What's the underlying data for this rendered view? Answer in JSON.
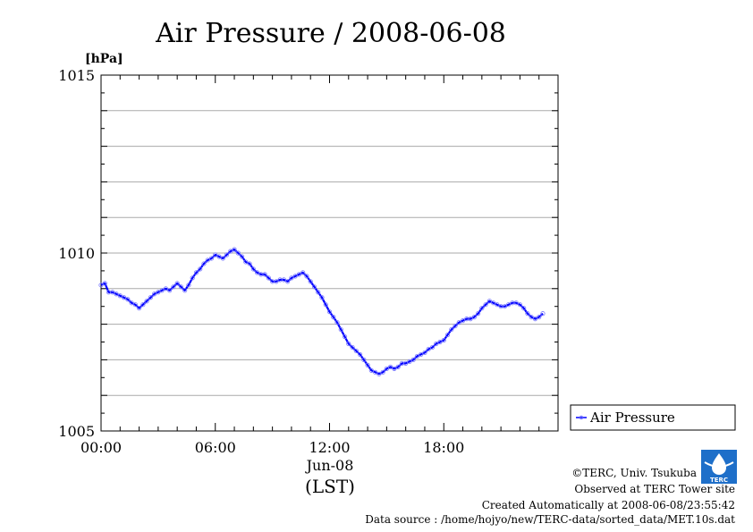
{
  "chart_data": {
    "type": "line",
    "title": "Air Pressure / 2008-06-08",
    "ylabel": "[hPa]",
    "xlabel_date": "Jun-08",
    "xlabel_unit": "(LST)",
    "xlim": [
      0,
      24
    ],
    "ylim": [
      1005,
      1015
    ],
    "x_ticks": [
      {
        "value": 0,
        "label": "00:00"
      },
      {
        "value": 6,
        "label": "06:00"
      },
      {
        "value": 12,
        "label": "12:00"
      },
      {
        "value": 18,
        "label": "18:00"
      }
    ],
    "y_ticks": [
      {
        "value": 1005,
        "label": "1005"
      },
      {
        "value": 1010,
        "label": "1010"
      },
      {
        "value": 1015,
        "label": "1015"
      }
    ],
    "grid": true,
    "legend_position": "right",
    "series": [
      {
        "name": "Air Pressure",
        "color": "#0000ff",
        "points": [
          [
            0.0,
            1009.1
          ],
          [
            0.2,
            1009.15
          ],
          [
            0.4,
            1008.9
          ],
          [
            0.6,
            1008.9
          ],
          [
            0.8,
            1008.85
          ],
          [
            1.0,
            1008.8
          ],
          [
            1.2,
            1008.75
          ],
          [
            1.4,
            1008.7
          ],
          [
            1.6,
            1008.6
          ],
          [
            1.8,
            1008.55
          ],
          [
            2.0,
            1008.45
          ],
          [
            2.2,
            1008.55
          ],
          [
            2.4,
            1008.65
          ],
          [
            2.6,
            1008.75
          ],
          [
            2.8,
            1008.85
          ],
          [
            3.0,
            1008.9
          ],
          [
            3.2,
            1008.95
          ],
          [
            3.4,
            1009.0
          ],
          [
            3.6,
            1008.95
          ],
          [
            3.8,
            1009.05
          ],
          [
            4.0,
            1009.15
          ],
          [
            4.2,
            1009.05
          ],
          [
            4.4,
            1008.95
          ],
          [
            4.6,
            1009.1
          ],
          [
            4.8,
            1009.3
          ],
          [
            5.0,
            1009.45
          ],
          [
            5.2,
            1009.55
          ],
          [
            5.4,
            1009.7
          ],
          [
            5.6,
            1009.8
          ],
          [
            5.8,
            1009.85
          ],
          [
            6.0,
            1009.95
          ],
          [
            6.2,
            1009.9
          ],
          [
            6.4,
            1009.85
          ],
          [
            6.6,
            1009.95
          ],
          [
            6.8,
            1010.05
          ],
          [
            7.0,
            1010.1
          ],
          [
            7.2,
            1010.0
          ],
          [
            7.4,
            1009.9
          ],
          [
            7.6,
            1009.75
          ],
          [
            7.8,
            1009.7
          ],
          [
            8.0,
            1009.55
          ],
          [
            8.2,
            1009.45
          ],
          [
            8.4,
            1009.4
          ],
          [
            8.6,
            1009.4
          ],
          [
            8.8,
            1009.3
          ],
          [
            9.0,
            1009.2
          ],
          [
            9.2,
            1009.2
          ],
          [
            9.4,
            1009.25
          ],
          [
            9.6,
            1009.25
          ],
          [
            9.8,
            1009.2
          ],
          [
            10.0,
            1009.3
          ],
          [
            10.2,
            1009.35
          ],
          [
            10.4,
            1009.4
          ],
          [
            10.6,
            1009.45
          ],
          [
            10.8,
            1009.35
          ],
          [
            11.0,
            1009.2
          ],
          [
            11.2,
            1009.05
          ],
          [
            11.4,
            1008.9
          ],
          [
            11.6,
            1008.75
          ],
          [
            11.8,
            1008.55
          ],
          [
            12.0,
            1008.35
          ],
          [
            12.2,
            1008.2
          ],
          [
            12.4,
            1008.05
          ],
          [
            12.6,
            1007.85
          ],
          [
            12.8,
            1007.65
          ],
          [
            13.0,
            1007.45
          ],
          [
            13.2,
            1007.35
          ],
          [
            13.4,
            1007.25
          ],
          [
            13.6,
            1007.15
          ],
          [
            13.8,
            1007.0
          ],
          [
            14.0,
            1006.85
          ],
          [
            14.2,
            1006.7
          ],
          [
            14.4,
            1006.65
          ],
          [
            14.6,
            1006.6
          ],
          [
            14.8,
            1006.65
          ],
          [
            15.0,
            1006.75
          ],
          [
            15.2,
            1006.8
          ],
          [
            15.4,
            1006.75
          ],
          [
            15.6,
            1006.8
          ],
          [
            15.8,
            1006.9
          ],
          [
            16.0,
            1006.9
          ],
          [
            16.2,
            1006.95
          ],
          [
            16.4,
            1007.0
          ],
          [
            16.6,
            1007.1
          ],
          [
            16.8,
            1007.15
          ],
          [
            17.0,
            1007.2
          ],
          [
            17.2,
            1007.3
          ],
          [
            17.4,
            1007.35
          ],
          [
            17.6,
            1007.45
          ],
          [
            17.8,
            1007.5
          ],
          [
            18.0,
            1007.55
          ],
          [
            18.2,
            1007.7
          ],
          [
            18.4,
            1007.85
          ],
          [
            18.6,
            1007.95
          ],
          [
            18.8,
            1008.05
          ],
          [
            19.0,
            1008.1
          ],
          [
            19.2,
            1008.15
          ],
          [
            19.4,
            1008.15
          ],
          [
            19.6,
            1008.2
          ],
          [
            19.8,
            1008.3
          ],
          [
            20.0,
            1008.45
          ],
          [
            20.2,
            1008.55
          ],
          [
            20.4,
            1008.65
          ],
          [
            20.6,
            1008.6
          ],
          [
            20.8,
            1008.55
          ],
          [
            21.0,
            1008.5
          ],
          [
            21.2,
            1008.5
          ],
          [
            21.4,
            1008.55
          ],
          [
            21.6,
            1008.6
          ],
          [
            21.8,
            1008.6
          ],
          [
            22.0,
            1008.55
          ],
          [
            22.2,
            1008.45
          ],
          [
            22.4,
            1008.3
          ],
          [
            22.6,
            1008.2
          ],
          [
            22.8,
            1008.15
          ],
          [
            23.0,
            1008.2
          ],
          [
            23.2,
            1008.3
          ]
        ]
      }
    ]
  },
  "footer": {
    "credit": "©TERC, Univ. Tsukuba",
    "observed": "Observed at TERC Tower site",
    "created": "Created Automatically at 2008-06-08/23:55:42",
    "source": "Data source : /home/hojyo/new/TERC-data/sorted_data/MET.10s.dat",
    "logo_text": "TERC"
  }
}
